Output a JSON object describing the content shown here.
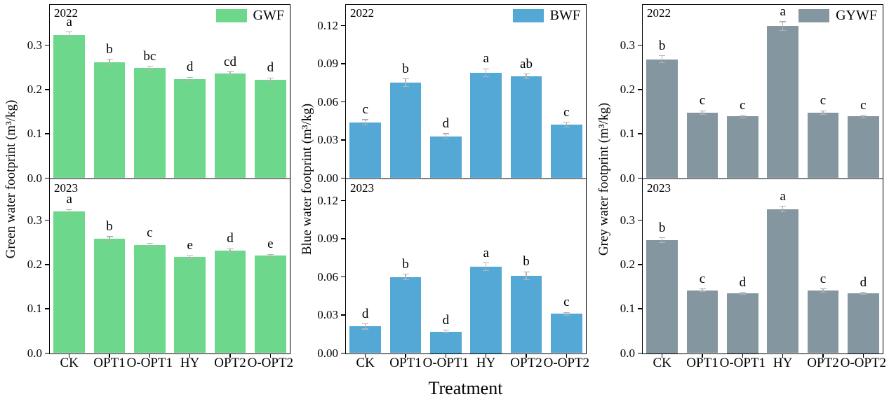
{
  "figure": {
    "xlabel": "Treatment",
    "categories": [
      "CK",
      "OPT1",
      "O-OPT1",
      "HY",
      "OPT2",
      "O-OPT2"
    ],
    "background_color": "#ffffff",
    "axis_color": "#000000",
    "error_bar_color": "#b3b3b3"
  },
  "chart_data": [
    {
      "type": "bar",
      "legend": "GWF",
      "color": "#6dd88b",
      "ylabel": "Green water footprint (m³/kg)",
      "ylim": [
        0,
        0.39
      ],
      "ytick_values": [
        0.0,
        0.1,
        0.2,
        0.3
      ],
      "ytick_labels": [
        "0.0",
        "0.1",
        "0.2",
        "0.3"
      ],
      "categories": [
        "CK",
        "OPT1",
        "O-OPT1",
        "HY",
        "OPT2",
        "O-OPT2"
      ],
      "panels": [
        {
          "year": "2022",
          "values": [
            0.323,
            0.262,
            0.248,
            0.223,
            0.236,
            0.222
          ],
          "errors": [
            0.007,
            0.006,
            0.004,
            0.005,
            0.004,
            0.004
          ],
          "letters": [
            "a",
            "b",
            "bc",
            "d",
            "cd",
            "d"
          ]
        },
        {
          "year": "2023",
          "values": [
            0.32,
            0.258,
            0.244,
            0.217,
            0.232,
            0.22
          ],
          "errors": [
            0.004,
            0.005,
            0.004,
            0.003,
            0.004,
            0.003
          ],
          "letters": [
            "a",
            "b",
            "c",
            "e",
            "d",
            "e"
          ]
        }
      ]
    },
    {
      "type": "bar",
      "legend": "BWF",
      "color": "#54a8d6",
      "ylabel": "Blue water footprint (m³/kg)",
      "ylim": [
        0,
        0.136
      ],
      "ytick_values": [
        0.0,
        0.03,
        0.06,
        0.09,
        0.12
      ],
      "ytick_labels": [
        "0.00",
        "0.03",
        "0.06",
        "0.09",
        "0.12"
      ],
      "categories": [
        "CK",
        "OPT1",
        "O-OPT1",
        "HY",
        "OPT2",
        "O-OPT2"
      ],
      "panels": [
        {
          "year": "2022",
          "values": [
            0.044,
            0.075,
            0.033,
            0.083,
            0.08,
            0.042
          ],
          "errors": [
            0.002,
            0.003,
            0.002,
            0.003,
            0.002,
            0.002
          ],
          "letters": [
            "c",
            "b",
            "d",
            "a",
            "ab",
            "c"
          ]
        },
        {
          "year": "2023",
          "values": [
            0.021,
            0.06,
            0.017,
            0.068,
            0.061,
            0.031
          ],
          "errors": [
            0.002,
            0.002,
            0.001,
            0.003,
            0.003,
            0.001
          ],
          "letters": [
            "d",
            "b",
            "d",
            "a",
            "b",
            "c"
          ]
        }
      ]
    },
    {
      "type": "bar",
      "legend": "GYWF",
      "color": "#8497a0",
      "ylabel": "Grey water footprint (m³/kg)",
      "ylim": [
        0,
        0.39
      ],
      "ytick_values": [
        0.0,
        0.1,
        0.2,
        0.3
      ],
      "ytick_labels": [
        "0.0",
        "0.1",
        "0.2",
        "0.3"
      ],
      "categories": [
        "CK",
        "OPT1",
        "O-OPT1",
        "HY",
        "OPT2",
        "O-OPT2"
      ],
      "panels": [
        {
          "year": "2022",
          "values": [
            0.268,
            0.148,
            0.139,
            0.343,
            0.148,
            0.139
          ],
          "errors": [
            0.008,
            0.004,
            0.003,
            0.01,
            0.004,
            0.003
          ],
          "letters": [
            "b",
            "c",
            "c",
            "a",
            "c",
            "c"
          ]
        },
        {
          "year": "2023",
          "values": [
            0.255,
            0.142,
            0.135,
            0.325,
            0.141,
            0.135
          ],
          "errors": [
            0.005,
            0.003,
            0.002,
            0.006,
            0.004,
            0.002
          ],
          "letters": [
            "b",
            "c",
            "d",
            "a",
            "c",
            "d"
          ]
        }
      ]
    }
  ]
}
